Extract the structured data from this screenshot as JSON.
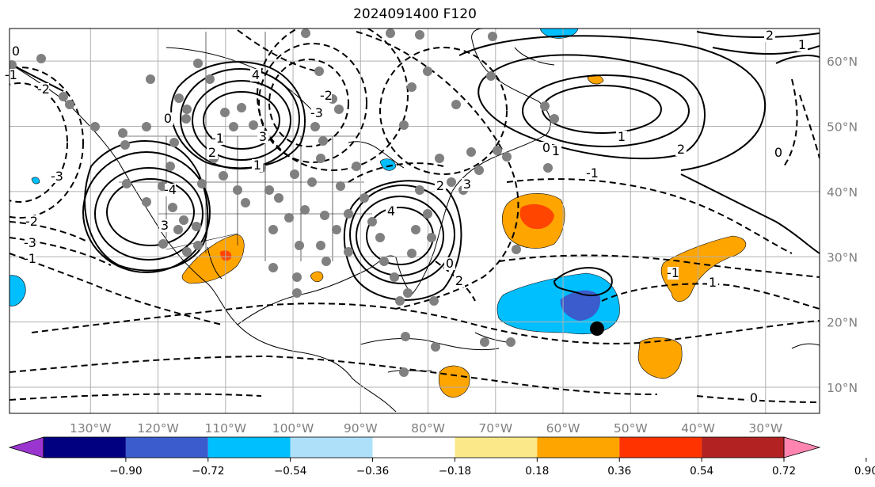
{
  "title": "2024091400 F120",
  "map": {
    "projection": "PlateCarree",
    "lon_range": [
      -142,
      -22
    ],
    "lat_range": [
      6,
      65
    ],
    "longitude_labels": [
      "130°W",
      "120°W",
      "110°W",
      "100°W",
      "90°W",
      "80°W",
      "70°W",
      "60°W",
      "50°W",
      "40°W",
      "30°W"
    ],
    "latitude_labels": [
      "60°N",
      "50°N",
      "40°N",
      "30°N",
      "20°N",
      "10°N"
    ],
    "grid": true,
    "colors": {
      "coast": "#000000",
      "gridline": "#b0b0b0",
      "tick_text": "#808080",
      "station_marker": "#808080",
      "storm_marker": "#000000"
    },
    "contour_labels": [
      "2",
      "1",
      "0",
      "-1",
      "-2",
      "-3",
      "-4",
      "3",
      "4",
      "0",
      "-1",
      "2",
      "3",
      "1",
      "-2",
      "-3",
      "4",
      "3",
      "2",
      "1",
      "0",
      "-1",
      "2",
      "1",
      "0",
      "1",
      "-1",
      "0",
      "-2",
      "-3",
      "-1",
      "2",
      "0"
    ]
  },
  "colorbar": {
    "tick_labels": [
      "−0.90",
      "−0.72",
      "−0.54",
      "−0.36",
      "−0.18",
      "0.18",
      "0.36",
      "0.54",
      "0.72",
      "0.90"
    ],
    "colors": [
      "#9b35cf",
      "#000080",
      "#3a5ccc",
      "#00bfff",
      "#aee0fa",
      "#ffffff",
      "#fbe888",
      "#ffa500",
      "#ff3300",
      "#b22222",
      "#ff85b0"
    ],
    "extend": "both"
  }
}
